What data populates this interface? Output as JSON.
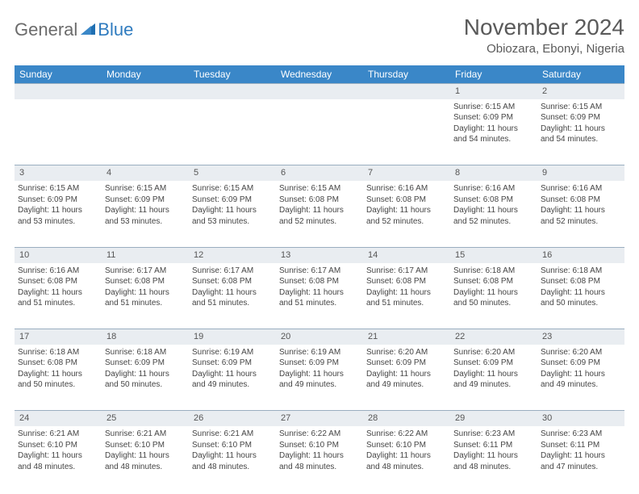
{
  "logo": {
    "word1": "General",
    "word2": "Blue"
  },
  "title": "November 2024",
  "location": "Obiozara, Ebonyi, Nigeria",
  "colors": {
    "header_bg": "#3a87c8",
    "header_text": "#ffffff",
    "daynum_bg": "#e9edf1",
    "border": "#9aaec0",
    "logo_gray": "#6b6b6b",
    "logo_blue": "#2f7bbf"
  },
  "weekdays": [
    "Sunday",
    "Monday",
    "Tuesday",
    "Wednesday",
    "Thursday",
    "Friday",
    "Saturday"
  ],
  "weeks": [
    {
      "nums": [
        "",
        "",
        "",
        "",
        "",
        "1",
        "2"
      ],
      "cells": [
        null,
        null,
        null,
        null,
        null,
        {
          "sunrise": "Sunrise: 6:15 AM",
          "sunset": "Sunset: 6:09 PM",
          "day1": "Daylight: 11 hours",
          "day2": "and 54 minutes."
        },
        {
          "sunrise": "Sunrise: 6:15 AM",
          "sunset": "Sunset: 6:09 PM",
          "day1": "Daylight: 11 hours",
          "day2": "and 54 minutes."
        }
      ]
    },
    {
      "nums": [
        "3",
        "4",
        "5",
        "6",
        "7",
        "8",
        "9"
      ],
      "cells": [
        {
          "sunrise": "Sunrise: 6:15 AM",
          "sunset": "Sunset: 6:09 PM",
          "day1": "Daylight: 11 hours",
          "day2": "and 53 minutes."
        },
        {
          "sunrise": "Sunrise: 6:15 AM",
          "sunset": "Sunset: 6:09 PM",
          "day1": "Daylight: 11 hours",
          "day2": "and 53 minutes."
        },
        {
          "sunrise": "Sunrise: 6:15 AM",
          "sunset": "Sunset: 6:09 PM",
          "day1": "Daylight: 11 hours",
          "day2": "and 53 minutes."
        },
        {
          "sunrise": "Sunrise: 6:15 AM",
          "sunset": "Sunset: 6:08 PM",
          "day1": "Daylight: 11 hours",
          "day2": "and 52 minutes."
        },
        {
          "sunrise": "Sunrise: 6:16 AM",
          "sunset": "Sunset: 6:08 PM",
          "day1": "Daylight: 11 hours",
          "day2": "and 52 minutes."
        },
        {
          "sunrise": "Sunrise: 6:16 AM",
          "sunset": "Sunset: 6:08 PM",
          "day1": "Daylight: 11 hours",
          "day2": "and 52 minutes."
        },
        {
          "sunrise": "Sunrise: 6:16 AM",
          "sunset": "Sunset: 6:08 PM",
          "day1": "Daylight: 11 hours",
          "day2": "and 52 minutes."
        }
      ]
    },
    {
      "nums": [
        "10",
        "11",
        "12",
        "13",
        "14",
        "15",
        "16"
      ],
      "cells": [
        {
          "sunrise": "Sunrise: 6:16 AM",
          "sunset": "Sunset: 6:08 PM",
          "day1": "Daylight: 11 hours",
          "day2": "and 51 minutes."
        },
        {
          "sunrise": "Sunrise: 6:17 AM",
          "sunset": "Sunset: 6:08 PM",
          "day1": "Daylight: 11 hours",
          "day2": "and 51 minutes."
        },
        {
          "sunrise": "Sunrise: 6:17 AM",
          "sunset": "Sunset: 6:08 PM",
          "day1": "Daylight: 11 hours",
          "day2": "and 51 minutes."
        },
        {
          "sunrise": "Sunrise: 6:17 AM",
          "sunset": "Sunset: 6:08 PM",
          "day1": "Daylight: 11 hours",
          "day2": "and 51 minutes."
        },
        {
          "sunrise": "Sunrise: 6:17 AM",
          "sunset": "Sunset: 6:08 PM",
          "day1": "Daylight: 11 hours",
          "day2": "and 51 minutes."
        },
        {
          "sunrise": "Sunrise: 6:18 AM",
          "sunset": "Sunset: 6:08 PM",
          "day1": "Daylight: 11 hours",
          "day2": "and 50 minutes."
        },
        {
          "sunrise": "Sunrise: 6:18 AM",
          "sunset": "Sunset: 6:08 PM",
          "day1": "Daylight: 11 hours",
          "day2": "and 50 minutes."
        }
      ]
    },
    {
      "nums": [
        "17",
        "18",
        "19",
        "20",
        "21",
        "22",
        "23"
      ],
      "cells": [
        {
          "sunrise": "Sunrise: 6:18 AM",
          "sunset": "Sunset: 6:08 PM",
          "day1": "Daylight: 11 hours",
          "day2": "and 50 minutes."
        },
        {
          "sunrise": "Sunrise: 6:18 AM",
          "sunset": "Sunset: 6:09 PM",
          "day1": "Daylight: 11 hours",
          "day2": "and 50 minutes."
        },
        {
          "sunrise": "Sunrise: 6:19 AM",
          "sunset": "Sunset: 6:09 PM",
          "day1": "Daylight: 11 hours",
          "day2": "and 49 minutes."
        },
        {
          "sunrise": "Sunrise: 6:19 AM",
          "sunset": "Sunset: 6:09 PM",
          "day1": "Daylight: 11 hours",
          "day2": "and 49 minutes."
        },
        {
          "sunrise": "Sunrise: 6:20 AM",
          "sunset": "Sunset: 6:09 PM",
          "day1": "Daylight: 11 hours",
          "day2": "and 49 minutes."
        },
        {
          "sunrise": "Sunrise: 6:20 AM",
          "sunset": "Sunset: 6:09 PM",
          "day1": "Daylight: 11 hours",
          "day2": "and 49 minutes."
        },
        {
          "sunrise": "Sunrise: 6:20 AM",
          "sunset": "Sunset: 6:09 PM",
          "day1": "Daylight: 11 hours",
          "day2": "and 49 minutes."
        }
      ]
    },
    {
      "nums": [
        "24",
        "25",
        "26",
        "27",
        "28",
        "29",
        "30"
      ],
      "cells": [
        {
          "sunrise": "Sunrise: 6:21 AM",
          "sunset": "Sunset: 6:10 PM",
          "day1": "Daylight: 11 hours",
          "day2": "and 48 minutes."
        },
        {
          "sunrise": "Sunrise: 6:21 AM",
          "sunset": "Sunset: 6:10 PM",
          "day1": "Daylight: 11 hours",
          "day2": "and 48 minutes."
        },
        {
          "sunrise": "Sunrise: 6:21 AM",
          "sunset": "Sunset: 6:10 PM",
          "day1": "Daylight: 11 hours",
          "day2": "and 48 minutes."
        },
        {
          "sunrise": "Sunrise: 6:22 AM",
          "sunset": "Sunset: 6:10 PM",
          "day1": "Daylight: 11 hours",
          "day2": "and 48 minutes."
        },
        {
          "sunrise": "Sunrise: 6:22 AM",
          "sunset": "Sunset: 6:10 PM",
          "day1": "Daylight: 11 hours",
          "day2": "and 48 minutes."
        },
        {
          "sunrise": "Sunrise: 6:23 AM",
          "sunset": "Sunset: 6:11 PM",
          "day1": "Daylight: 11 hours",
          "day2": "and 48 minutes."
        },
        {
          "sunrise": "Sunrise: 6:23 AM",
          "sunset": "Sunset: 6:11 PM",
          "day1": "Daylight: 11 hours",
          "day2": "and 47 minutes."
        }
      ]
    }
  ]
}
